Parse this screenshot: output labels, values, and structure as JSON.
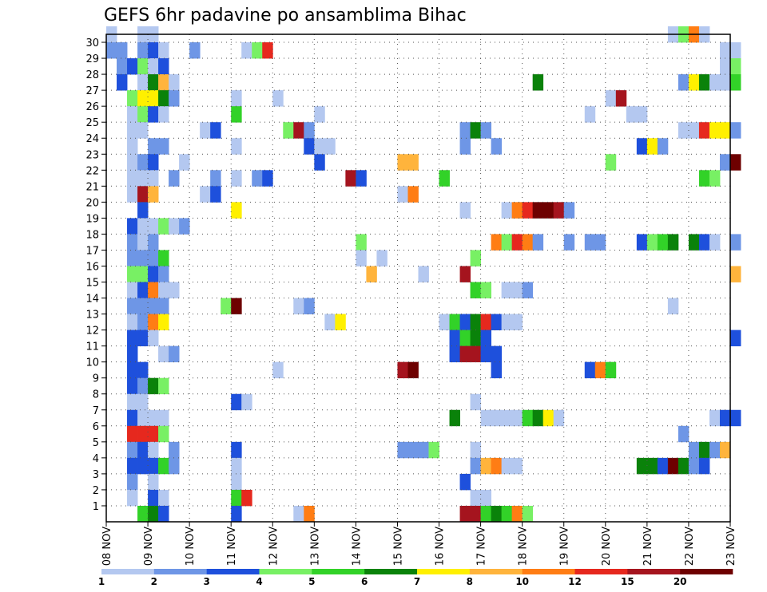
{
  "chart_data": {
    "type": "heatmap",
    "title": "GEFS 6hr padavine po ansamblima Bihac",
    "x_ticks": [
      "08 NOV",
      "09 NOV",
      "10 NOV",
      "11 NOV",
      "12 NOV",
      "13 NOV",
      "14 NOV",
      "15 NOV",
      "16 NOV",
      "17 NOV",
      "18 NOV",
      "19 NOV",
      "20 NOV",
      "21 NOV",
      "22 NOV",
      "23 NOV"
    ],
    "y_ticks": [
      1,
      2,
      3,
      4,
      5,
      6,
      7,
      8,
      9,
      10,
      11,
      12,
      13,
      14,
      15,
      16,
      17,
      18,
      19,
      20,
      21,
      22,
      23,
      24,
      25,
      26,
      27,
      28,
      29,
      30
    ],
    "ylim": [
      0,
      30
    ],
    "x_unit": "6-hour steps from 08 NOV 00Z",
    "colorbar": {
      "labels": [
        "1",
        "2",
        "3",
        "4",
        "5",
        "6",
        "7",
        "8",
        "10",
        "12",
        "15",
        "20"
      ],
      "colors": [
        "#b4c8f0",
        "#6e96e6",
        "#1e50dc",
        "#78f064",
        "#32d228",
        "#0a820a",
        "#fff000",
        "#ffb43c",
        "#ff7d14",
        "#e6281e",
        "#a5141e",
        "#6e0000"
      ]
    },
    "cells": [
      [
        12,
        30,
        1
      ],
      [
        12,
        29,
        2
      ],
      [
        13,
        29,
        2
      ],
      [
        13,
        28,
        2
      ],
      [
        13,
        27,
        3
      ],
      [
        14,
        28,
        3
      ],
      [
        14,
        26,
        4
      ],
      [
        14,
        25,
        1
      ],
      [
        14,
        24,
        1
      ],
      [
        14,
        23,
        1
      ],
      [
        14,
        22,
        1
      ],
      [
        14,
        21,
        1
      ],
      [
        14,
        20,
        1
      ],
      [
        14,
        18,
        3
      ],
      [
        14,
        17,
        2
      ],
      [
        14,
        16,
        2
      ],
      [
        14,
        15,
        4
      ],
      [
        14,
        14,
        1
      ],
      [
        14,
        13,
        2
      ],
      [
        14,
        12,
        1
      ],
      [
        14,
        11,
        3
      ],
      [
        14,
        10,
        3
      ],
      [
        14,
        9,
        3
      ],
      [
        14,
        8,
        3
      ],
      [
        14,
        7,
        1
      ],
      [
        14,
        6,
        3
      ],
      [
        14,
        5,
        10
      ],
      [
        14,
        4,
        2
      ],
      [
        14,
        3,
        3
      ],
      [
        14,
        2,
        2
      ],
      [
        14,
        1,
        1
      ],
      [
        15,
        30,
        1
      ],
      [
        15,
        29,
        2
      ],
      [
        15,
        28,
        4
      ],
      [
        15,
        27,
        1
      ],
      [
        15,
        26,
        7
      ],
      [
        15,
        25,
        4
      ],
      [
        15,
        24,
        1
      ],
      [
        15,
        22,
        2
      ],
      [
        15,
        21,
        1
      ],
      [
        15,
        20,
        11
      ],
      [
        15,
        19,
        3
      ],
      [
        15,
        18,
        1
      ],
      [
        15,
        17,
        1
      ],
      [
        15,
        16,
        2
      ],
      [
        15,
        15,
        4
      ],
      [
        15,
        14,
        3
      ],
      [
        15,
        13,
        2
      ],
      [
        15,
        12,
        2
      ],
      [
        15,
        11,
        3
      ],
      [
        15,
        9,
        3
      ],
      [
        15,
        8,
        2
      ],
      [
        15,
        7,
        1
      ],
      [
        15,
        6,
        1
      ],
      [
        15,
        5,
        10
      ],
      [
        15,
        4,
        3
      ],
      [
        15,
        3,
        3
      ],
      [
        15,
        0,
        5
      ],
      [
        16,
        30,
        1
      ],
      [
        16,
        29,
        3
      ],
      [
        16,
        28,
        1
      ],
      [
        16,
        27,
        6
      ],
      [
        16,
        26,
        7
      ],
      [
        16,
        25,
        3
      ],
      [
        16,
        23,
        2
      ],
      [
        16,
        22,
        3
      ],
      [
        16,
        21,
        1
      ],
      [
        16,
        20,
        8
      ],
      [
        16,
        18,
        1
      ],
      [
        16,
        17,
        2
      ],
      [
        16,
        16,
        2
      ],
      [
        16,
        15,
        3
      ],
      [
        16,
        14,
        9
      ],
      [
        16,
        13,
        2
      ],
      [
        16,
        12,
        9
      ],
      [
        16,
        11,
        1
      ],
      [
        16,
        8,
        6
      ],
      [
        16,
        6,
        1
      ],
      [
        16,
        5,
        10
      ],
      [
        16,
        4,
        1
      ],
      [
        16,
        3,
        3
      ],
      [
        16,
        2,
        1
      ],
      [
        16,
        1,
        3
      ],
      [
        16,
        0,
        6
      ],
      [
        17,
        29,
        1
      ],
      [
        17,
        28,
        3
      ],
      [
        17,
        27,
        8
      ],
      [
        17,
        26,
        6
      ],
      [
        17,
        25,
        1
      ],
      [
        17,
        23,
        2
      ],
      [
        17,
        18,
        4
      ],
      [
        17,
        16,
        5
      ],
      [
        17,
        15,
        2
      ],
      [
        17,
        14,
        1
      ],
      [
        17,
        13,
        2
      ],
      [
        17,
        12,
        7
      ],
      [
        17,
        10,
        1
      ],
      [
        17,
        8,
        4
      ],
      [
        17,
        6,
        1
      ],
      [
        17,
        5,
        4
      ],
      [
        17,
        3,
        5
      ],
      [
        17,
        1,
        1
      ],
      [
        17,
        0,
        3
      ],
      [
        18,
        27,
        1
      ],
      [
        18,
        26,
        2
      ],
      [
        18,
        21,
        2
      ],
      [
        18,
        18,
        1
      ],
      [
        18,
        14,
        1
      ],
      [
        18,
        10,
        2
      ],
      [
        18,
        4,
        2
      ],
      [
        18,
        3,
        2
      ],
      [
        19,
        18,
        2
      ],
      [
        19,
        22,
        1
      ],
      [
        20,
        29,
        2
      ],
      [
        21,
        24,
        1
      ],
      [
        21,
        20,
        1
      ],
      [
        22,
        24,
        3
      ],
      [
        22,
        21,
        2
      ],
      [
        22,
        20,
        3
      ],
      [
        23,
        13,
        4
      ],
      [
        24,
        26,
        1
      ],
      [
        24,
        25,
        5
      ],
      [
        24,
        23,
        1
      ],
      [
        24,
        21,
        1
      ],
      [
        24,
        19,
        7
      ],
      [
        24,
        13,
        12
      ],
      [
        24,
        7,
        3
      ],
      [
        24,
        4,
        3
      ],
      [
        24,
        3,
        1
      ],
      [
        24,
        2,
        1
      ],
      [
        24,
        1,
        5
      ],
      [
        24,
        0,
        3
      ],
      [
        25,
        29,
        1
      ],
      [
        25,
        7,
        1
      ],
      [
        25,
        1,
        10
      ],
      [
        26,
        29,
        4
      ],
      [
        26,
        21,
        2
      ],
      [
        27,
        29,
        10
      ],
      [
        27,
        21,
        3
      ],
      [
        28,
        26,
        1
      ],
      [
        28,
        9,
        1
      ],
      [
        29,
        24,
        4
      ],
      [
        30,
        24,
        11
      ],
      [
        30,
        13,
        1
      ],
      [
        30,
        0,
        1
      ],
      [
        31,
        24,
        2
      ],
      [
        31,
        23,
        3
      ],
      [
        31,
        13,
        2
      ],
      [
        31,
        0,
        9
      ],
      [
        32,
        25,
        1
      ],
      [
        32,
        23,
        1
      ],
      [
        32,
        22,
        3
      ],
      [
        33,
        23,
        1
      ],
      [
        33,
        12,
        1
      ],
      [
        34,
        12,
        7
      ],
      [
        35,
        21,
        11
      ],
      [
        36,
        21,
        3
      ],
      [
        36,
        17,
        4
      ],
      [
        36,
        16,
        1
      ],
      [
        37,
        15,
        8
      ],
      [
        38,
        16,
        1
      ],
      [
        40,
        22,
        8
      ],
      [
        40,
        20,
        1
      ],
      [
        40,
        9,
        11
      ],
      [
        40,
        4,
        2
      ],
      [
        41,
        22,
        8
      ],
      [
        41,
        20,
        9
      ],
      [
        41,
        9,
        12
      ],
      [
        41,
        4,
        2
      ],
      [
        42,
        15,
        1
      ],
      [
        42,
        4,
        2
      ],
      [
        43,
        4,
        4
      ],
      [
        44,
        21,
        5
      ],
      [
        44,
        12,
        1
      ],
      [
        45,
        12,
        5
      ],
      [
        45,
        11,
        3
      ],
      [
        45,
        10,
        3
      ],
      [
        45,
        6,
        6
      ],
      [
        46,
        24,
        2
      ],
      [
        46,
        23,
        2
      ],
      [
        46,
        19,
        1
      ],
      [
        46,
        15,
        11
      ],
      [
        46,
        12,
        3
      ],
      [
        46,
        11,
        5
      ],
      [
        46,
        10,
        11
      ],
      [
        46,
        2,
        3
      ],
      [
        46,
        0,
        11
      ],
      [
        47,
        24,
        6
      ],
      [
        47,
        16,
        4
      ],
      [
        47,
        14,
        5
      ],
      [
        47,
        12,
        6
      ],
      [
        47,
        11,
        6
      ],
      [
        47,
        10,
        11
      ],
      [
        47,
        7,
        1
      ],
      [
        47,
        4,
        1
      ],
      [
        47,
        3,
        2
      ],
      [
        47,
        1,
        1
      ],
      [
        47,
        0,
        11
      ],
      [
        48,
        24,
        2
      ],
      [
        48,
        14,
        4
      ],
      [
        48,
        12,
        10
      ],
      [
        48,
        11,
        3
      ],
      [
        48,
        10,
        3
      ],
      [
        48,
        6,
        1
      ],
      [
        48,
        3,
        8
      ],
      [
        48,
        1,
        1
      ],
      [
        48,
        0,
        5
      ],
      [
        49,
        23,
        2
      ],
      [
        49,
        17,
        9
      ],
      [
        49,
        12,
        3
      ],
      [
        49,
        10,
        3
      ],
      [
        49,
        9,
        3
      ],
      [
        49,
        6,
        1
      ],
      [
        49,
        3,
        9
      ],
      [
        49,
        0,
        6
      ],
      [
        50,
        19,
        1
      ],
      [
        50,
        17,
        4
      ],
      [
        50,
        14,
        1
      ],
      [
        50,
        12,
        1
      ],
      [
        50,
        6,
        1
      ],
      [
        50,
        3,
        1
      ],
      [
        50,
        0,
        5
      ],
      [
        51,
        19,
        9
      ],
      [
        51,
        17,
        10
      ],
      [
        51,
        14,
        1
      ],
      [
        51,
        12,
        1
      ],
      [
        51,
        6,
        1
      ],
      [
        51,
        3,
        1
      ],
      [
        51,
        0,
        9
      ],
      [
        52,
        19,
        10
      ],
      [
        52,
        17,
        9
      ],
      [
        52,
        14,
        2
      ],
      [
        52,
        6,
        5
      ],
      [
        52,
        0,
        4
      ],
      [
        53,
        27,
        6
      ],
      [
        53,
        19,
        12
      ],
      [
        53,
        17,
        2
      ],
      [
        53,
        6,
        6
      ],
      [
        54,
        19,
        12
      ],
      [
        54,
        6,
        7
      ],
      [
        55,
        19,
        11
      ],
      [
        55,
        6,
        1
      ],
      [
        56,
        19,
        2
      ],
      [
        56,
        17,
        2
      ],
      [
        58,
        25,
        1
      ],
      [
        58,
        17,
        2
      ],
      [
        58,
        9,
        3
      ],
      [
        59,
        17,
        2
      ],
      [
        59,
        9,
        9
      ],
      [
        60,
        26,
        1
      ],
      [
        60,
        22,
        4
      ],
      [
        60,
        9,
        5
      ],
      [
        61,
        26,
        11
      ],
      [
        62,
        25,
        1
      ],
      [
        63,
        25,
        1
      ],
      [
        63,
        23,
        3
      ],
      [
        63,
        17,
        3
      ],
      [
        63,
        3,
        6
      ],
      [
        64,
        23,
        7
      ],
      [
        64,
        17,
        4
      ],
      [
        64,
        3,
        6
      ],
      [
        65,
        23,
        2
      ],
      [
        65,
        17,
        5
      ],
      [
        65,
        3,
        3
      ],
      [
        66,
        30,
        1
      ],
      [
        66,
        17,
        6
      ],
      [
        66,
        13,
        1
      ],
      [
        66,
        3,
        12
      ],
      [
        67,
        30,
        4
      ],
      [
        67,
        27,
        2
      ],
      [
        67,
        24,
        1
      ],
      [
        67,
        5,
        2
      ],
      [
        67,
        3,
        6
      ],
      [
        68,
        30,
        9
      ],
      [
        68,
        27,
        7
      ],
      [
        68,
        24,
        1
      ],
      [
        68,
        17,
        6
      ],
      [
        68,
        4,
        2
      ],
      [
        68,
        3,
        2
      ],
      [
        69,
        30,
        1
      ],
      [
        69,
        27,
        6
      ],
      [
        69,
        24,
        10
      ],
      [
        69,
        21,
        5
      ],
      [
        69,
        17,
        3
      ],
      [
        69,
        4,
        6
      ],
      [
        69,
        3,
        3
      ],
      [
        70,
        27,
        1
      ],
      [
        70,
        24,
        7
      ],
      [
        70,
        21,
        4
      ],
      [
        70,
        17,
        1
      ],
      [
        70,
        6,
        1
      ],
      [
        70,
        4,
        2
      ],
      [
        71,
        29,
        1
      ],
      [
        71,
        28,
        1
      ],
      [
        71,
        27,
        1
      ],
      [
        71,
        24,
        7
      ],
      [
        71,
        22,
        2
      ],
      [
        71,
        6,
        3
      ],
      [
        71,
        4,
        8
      ],
      [
        72,
        29,
        1
      ],
      [
        72,
        28,
        4
      ],
      [
        72,
        27,
        5
      ],
      [
        72,
        24,
        2
      ],
      [
        72,
        22,
        12
      ],
      [
        72,
        17,
        2
      ],
      [
        72,
        15,
        8
      ],
      [
        72,
        11,
        3
      ],
      [
        72,
        6,
        3
      ]
    ]
  }
}
